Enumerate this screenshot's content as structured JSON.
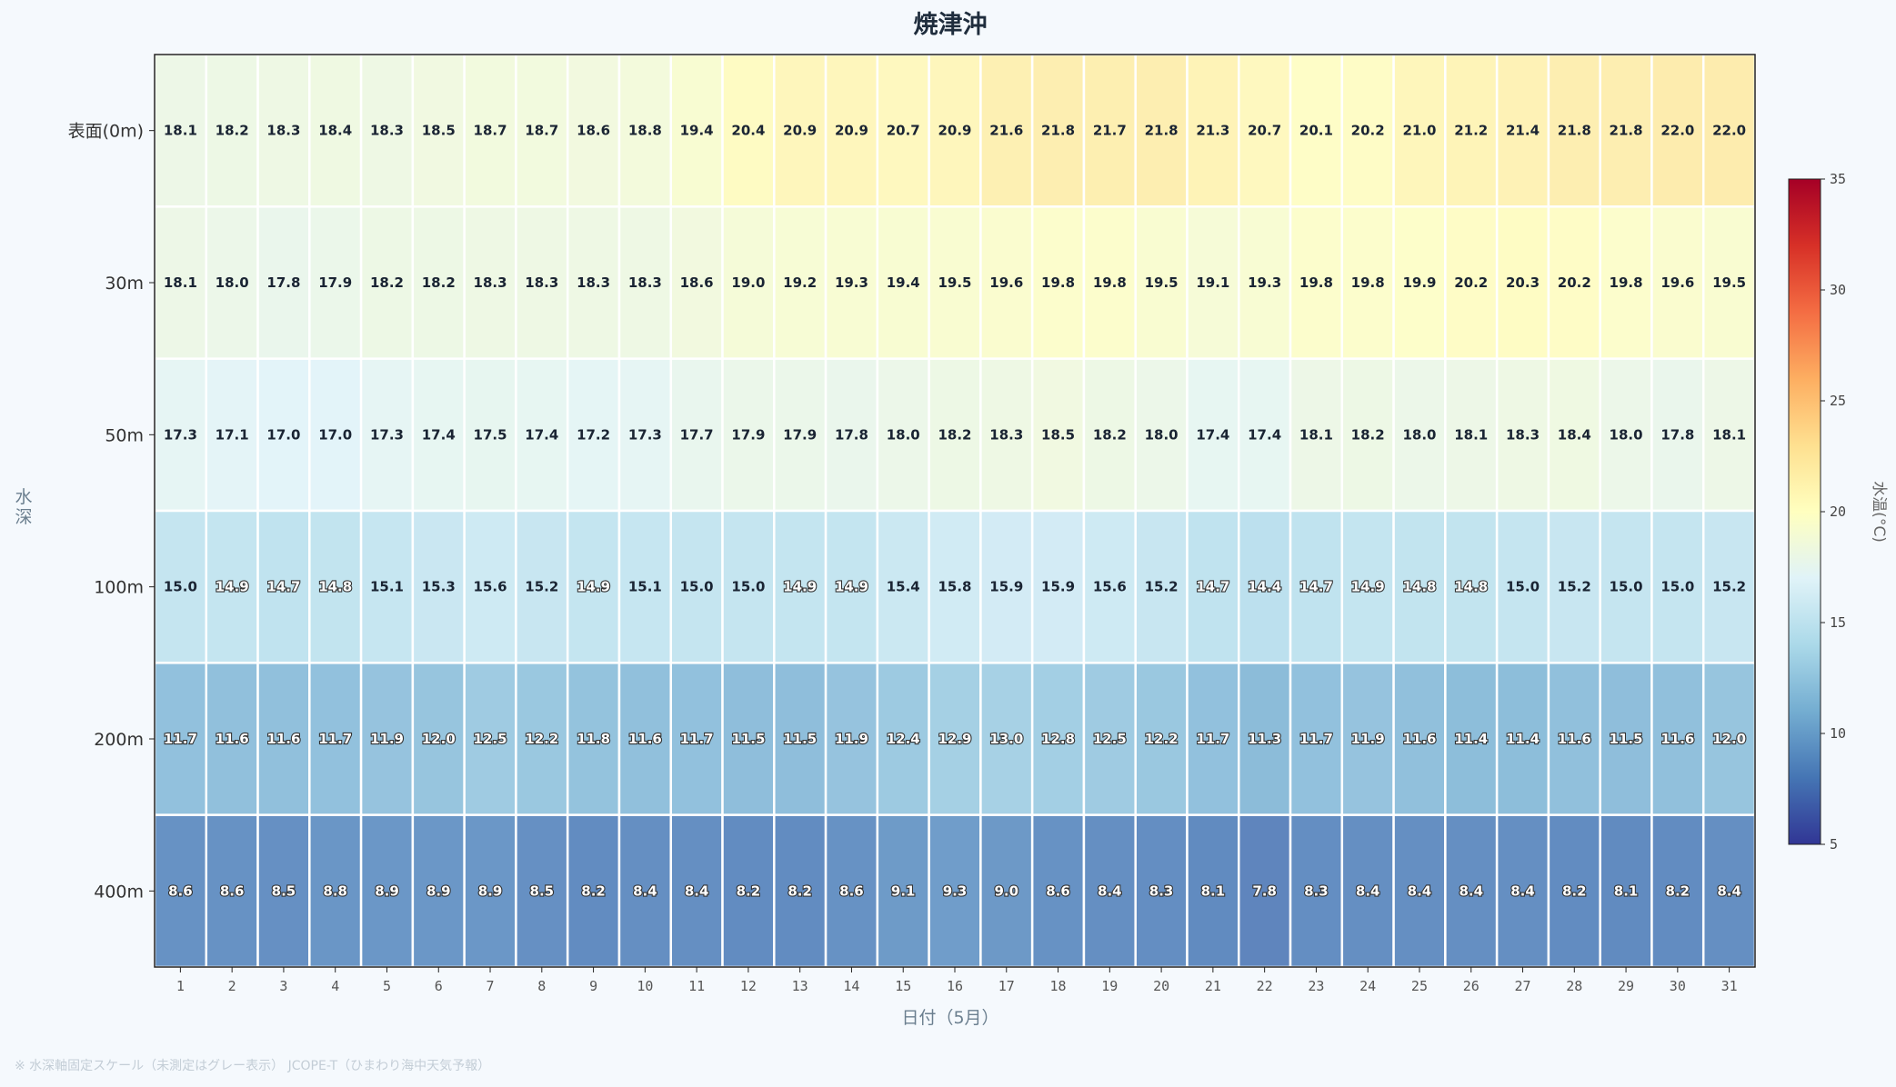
{
  "chart_data": {
    "type": "heatmap",
    "title": "焼津沖",
    "xlabel": "日付（5月）",
    "ylabel": "水深",
    "x": [
      1,
      2,
      3,
      4,
      5,
      6,
      7,
      8,
      9,
      10,
      11,
      12,
      13,
      14,
      15,
      16,
      17,
      18,
      19,
      20,
      21,
      22,
      23,
      24,
      25,
      26,
      27,
      28,
      29,
      30,
      31
    ],
    "y": [
      "表面(0m)",
      "30m",
      "50m",
      "100m",
      "200m",
      "400m"
    ],
    "values": [
      [
        18.1,
        18.2,
        18.3,
        18.4,
        18.3,
        18.5,
        18.7,
        18.7,
        18.6,
        18.8,
        19.4,
        20.4,
        20.9,
        20.9,
        20.7,
        20.9,
        21.6,
        21.8,
        21.7,
        21.8,
        21.3,
        20.7,
        20.1,
        20.2,
        21.0,
        21.2,
        21.4,
        21.8,
        21.8,
        22.0,
        22.0
      ],
      [
        18.1,
        18.0,
        17.8,
        17.9,
        18.2,
        18.2,
        18.3,
        18.3,
        18.3,
        18.3,
        18.6,
        19.0,
        19.2,
        19.3,
        19.4,
        19.5,
        19.6,
        19.8,
        19.8,
        19.5,
        19.1,
        19.3,
        19.8,
        19.8,
        19.9,
        20.2,
        20.3,
        20.2,
        19.8,
        19.6,
        19.5
      ],
      [
        17.3,
        17.1,
        17.0,
        17.0,
        17.3,
        17.4,
        17.5,
        17.4,
        17.2,
        17.3,
        17.7,
        17.9,
        17.9,
        17.8,
        18.0,
        18.2,
        18.3,
        18.5,
        18.2,
        18.0,
        17.4,
        17.4,
        18.1,
        18.2,
        18.0,
        18.1,
        18.3,
        18.4,
        18.0,
        17.8,
        18.1
      ],
      [
        15.0,
        14.9,
        14.7,
        14.8,
        15.1,
        15.3,
        15.6,
        15.2,
        14.9,
        15.1,
        15.0,
        15.0,
        14.9,
        14.9,
        15.4,
        15.8,
        15.9,
        15.9,
        15.6,
        15.2,
        14.7,
        14.4,
        14.7,
        14.9,
        14.8,
        14.8,
        15.0,
        15.2,
        15.0,
        15.0,
        15.2
      ],
      [
        11.7,
        11.6,
        11.6,
        11.7,
        11.9,
        12.0,
        12.5,
        12.2,
        11.8,
        11.6,
        11.7,
        11.5,
        11.5,
        11.9,
        12.4,
        12.9,
        13.0,
        12.8,
        12.5,
        12.2,
        11.7,
        11.3,
        11.7,
        11.9,
        11.6,
        11.4,
        11.4,
        11.6,
        11.5,
        11.6,
        12.0
      ],
      [
        8.6,
        8.6,
        8.5,
        8.8,
        8.9,
        8.9,
        8.9,
        8.5,
        8.2,
        8.4,
        8.4,
        8.2,
        8.2,
        8.6,
        9.1,
        9.3,
        9.0,
        8.6,
        8.4,
        8.3,
        8.1,
        7.8,
        8.3,
        8.4,
        8.4,
        8.4,
        8.4,
        8.2,
        8.1,
        8.2,
        8.4
      ]
    ],
    "colorbar": {
      "label": "水温(°C)",
      "range": [
        5,
        35
      ],
      "ticks": [
        5,
        10,
        15,
        20,
        25,
        30,
        35
      ],
      "colormap": "RdYlBu_r"
    }
  },
  "footnote": "※ 水深軸固定スケール（未測定はグレー表示） JCOPE-T（ひまわり海中天気予報）"
}
